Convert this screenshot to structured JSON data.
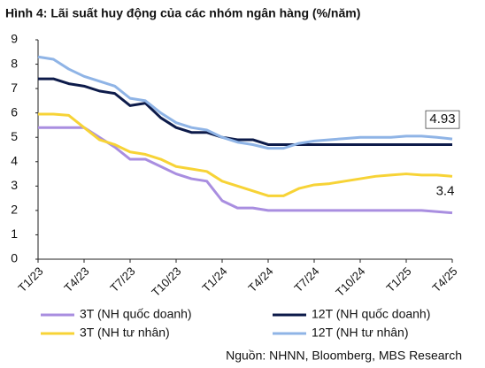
{
  "chart_data": {
    "type": "line",
    "title": "Hình 4: Lãi suất huy động của các nhóm ngân hàng (%/năm)",
    "source": "Nguồn: NHNN, Bloomberg, MBS Research",
    "categories": [
      "T1/23",
      null,
      null,
      "T4/23",
      null,
      null,
      "T7/23",
      null,
      null,
      "T10/23",
      null,
      null,
      "T1/24",
      null,
      null,
      "T4/24",
      null,
      null,
      "T7/24",
      null,
      null,
      "T10/24",
      null,
      null,
      "T1/25",
      null,
      null,
      "T4/25"
    ],
    "series": [
      {
        "name": "3T (NH quốc doanh)",
        "color": "#a98ee0",
        "values": [
          5.4,
          5.4,
          5.4,
          5.4,
          5.0,
          4.6,
          4.1,
          4.1,
          3.8,
          3.5,
          3.3,
          3.2,
          2.4,
          2.1,
          2.1,
          2.0,
          2.0,
          2.0,
          2.0,
          2.0,
          2.0,
          2.0,
          2.0,
          2.0,
          2.0,
          2.0,
          1.95,
          1.9
        ]
      },
      {
        "name": "12T (NH quốc doanh)",
        "color": "#0d1b4a",
        "values": [
          7.4,
          7.4,
          7.2,
          7.1,
          6.9,
          6.8,
          6.3,
          6.4,
          5.8,
          5.4,
          5.2,
          5.2,
          5.0,
          4.9,
          4.9,
          4.7,
          4.7,
          4.7,
          4.7,
          4.7,
          4.7,
          4.7,
          4.7,
          4.7,
          4.7,
          4.7,
          4.7,
          4.7
        ]
      },
      {
        "name": "3T (NH tư nhân)",
        "color": "#f7d336",
        "values": [
          5.95,
          5.95,
          5.9,
          5.4,
          4.9,
          4.7,
          4.4,
          4.3,
          4.1,
          3.8,
          3.7,
          3.6,
          3.2,
          3.0,
          2.8,
          2.6,
          2.6,
          2.9,
          3.05,
          3.1,
          3.2,
          3.3,
          3.4,
          3.45,
          3.5,
          3.45,
          3.45,
          3.4
        ]
      },
      {
        "name": "12T (NH tư nhân)",
        "color": "#8fb4e6",
        "values": [
          8.3,
          8.2,
          7.8,
          7.5,
          7.3,
          7.1,
          6.6,
          6.5,
          6.0,
          5.6,
          5.4,
          5.3,
          5.0,
          4.8,
          4.7,
          4.55,
          4.55,
          4.75,
          4.85,
          4.9,
          4.95,
          5.0,
          5.0,
          5.0,
          5.05,
          5.05,
          5.0,
          4.93
        ]
      }
    ],
    "ylim": [
      0,
      9
    ],
    "yticks": [
      0,
      1,
      2,
      3,
      4,
      5,
      6,
      7,
      8,
      9
    ],
    "grid": false
  }
}
